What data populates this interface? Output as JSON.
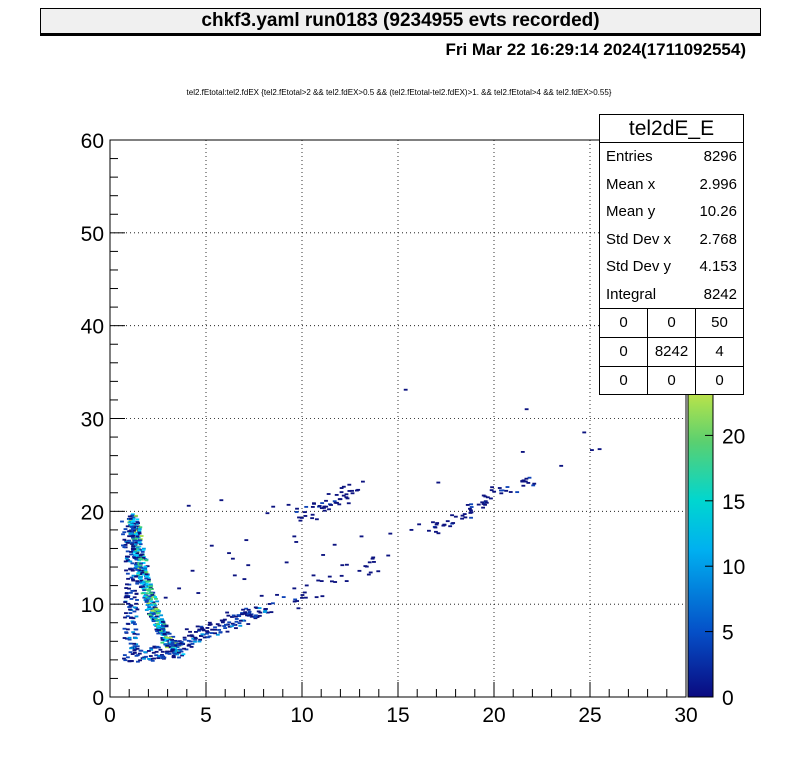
{
  "canvas": {
    "title": "chkf3.yaml  run0183 (9234955 evts recorded)",
    "date": "Fri Mar 22 16:29:14 2024(1711092554)",
    "cut": "tel2.fEtotal:tel2.fdEX {tel2.fEtotal>2 && tel2.fdEX>0.5 && (tel2.fEtotal-tel2.fdEX)>1. && tel2.fEtotal>4 && tel2.fdEX>0.55}"
  },
  "stats": {
    "title": "tel2dE_E",
    "rows": [
      {
        "label": "Entries",
        "value": "8296"
      },
      {
        "label": "Mean x",
        "value": "2.996"
      },
      {
        "label": "Mean y",
        "value": "10.26"
      },
      {
        "label": "Std Dev x",
        "value": "2.768"
      },
      {
        "label": "Std Dev y",
        "value": "4.153"
      },
      {
        "label": "Integral",
        "value": "8242"
      }
    ],
    "grid": [
      [
        "0",
        "0",
        "50"
      ],
      [
        "0",
        "8242",
        "4"
      ],
      [
        "0",
        "0",
        "0"
      ]
    ]
  },
  "chart_data": {
    "type": "heatmap",
    "title": "tel2dE_E",
    "xlim": [
      0,
      30
    ],
    "ylim": [
      0,
      60
    ],
    "xticks": [
      "0",
      "5",
      "10",
      "15",
      "20",
      "25",
      "30"
    ],
    "yticks": [
      "0",
      "10",
      "20",
      "30",
      "40",
      "50",
      "60"
    ],
    "z_range": [
      0,
      25
    ],
    "zticks": [
      "0",
      "5",
      "10",
      "15",
      "20"
    ],
    "grid": true,
    "palette": [
      "#0c1380",
      "#0f44b8",
      "#0098e0",
      "#00d0ff",
      "#3cd07c",
      "#a8e04a"
    ],
    "bands": [
      {
        "name": "ridge",
        "points": [
          [
            1.05,
            19.2
          ],
          [
            1.2,
            18.0
          ],
          [
            1.3,
            16.5
          ],
          [
            1.45,
            15.0
          ],
          [
            1.6,
            13.5
          ],
          [
            1.75,
            12.2
          ],
          [
            1.9,
            11.0
          ],
          [
            2.05,
            10.0
          ],
          [
            2.25,
            8.8
          ],
          [
            2.5,
            7.6
          ],
          [
            2.8,
            6.5
          ],
          [
            3.1,
            5.5
          ],
          [
            3.5,
            4.8
          ]
        ],
        "width": 0.28,
        "density": 12
      },
      {
        "name": "lower-branch",
        "points": [
          [
            3.0,
            5.0
          ],
          [
            4.0,
            6.2
          ],
          [
            5.0,
            7.0
          ],
          [
            6.0,
            7.8
          ],
          [
            7.0,
            8.6
          ],
          [
            8.0,
            9.2
          ]
        ],
        "width": 0.35,
        "density": 5
      },
      {
        "name": "upper-vertical",
        "points": [
          [
            0.8,
            19.0
          ],
          [
            0.9,
            16.0
          ],
          [
            1.0,
            13.0
          ],
          [
            1.0,
            10.0
          ],
          [
            1.0,
            7.0
          ],
          [
            1.0,
            5.0
          ]
        ],
        "width": 0.35,
        "density": 4
      },
      {
        "name": "floor",
        "points": [
          [
            0.6,
            4.5
          ],
          [
            1.5,
            4.5
          ],
          [
            2.5,
            4.6
          ],
          [
            3.5,
            4.8
          ]
        ],
        "width": 0.4,
        "density": 5
      },
      {
        "name": "sparse-branch",
        "points": [
          [
            8.0,
            9.0
          ],
          [
            10.0,
            11.0
          ],
          [
            12.0,
            13.0
          ],
          [
            14.0,
            14.8
          ]
        ],
        "width": 0.5,
        "density": 1
      },
      {
        "name": "mid-cluster",
        "points": [
          [
            9.8,
            19.5
          ],
          [
            10.8,
            20.3
          ],
          [
            11.8,
            21.2
          ],
          [
            12.8,
            22.3
          ]
        ],
        "width": 0.45,
        "density": 3
      },
      {
        "name": "high-branch",
        "points": [
          [
            16.5,
            17.8
          ],
          [
            17.5,
            18.8
          ],
          [
            18.5,
            19.8
          ],
          [
            19.5,
            21.0
          ],
          [
            20.5,
            22.2
          ],
          [
            22.0,
            23.5
          ]
        ],
        "width": 0.3,
        "density": 2
      }
    ],
    "scatter": [
      [
        15.3,
        33.0
      ],
      [
        21.6,
        30.9
      ],
      [
        24.6,
        28.4
      ],
      [
        21.4,
        26.3
      ],
      [
        23.4,
        24.8
      ],
      [
        25.0,
        26.5
      ],
      [
        25.4,
        26.6
      ],
      [
        17.0,
        23.0
      ],
      [
        4.0,
        20.5
      ],
      [
        5.7,
        21.1
      ],
      [
        9.2,
        20.6
      ],
      [
        8.1,
        19.7
      ],
      [
        4.2,
        13.5
      ],
      [
        6.3,
        14.8
      ],
      [
        7.1,
        14.1
      ],
      [
        3.5,
        11.6
      ],
      [
        13.2,
        14.0
      ],
      [
        11.6,
        16.3
      ],
      [
        9.6,
        16.6
      ],
      [
        7.0,
        16.8
      ],
      [
        13.0,
        17.2
      ],
      [
        14.5,
        17.5
      ],
      [
        15.6,
        17.9
      ],
      [
        3.9,
        7.2
      ],
      [
        6.9,
        12.6
      ],
      [
        8.6,
        10.9
      ],
      [
        9.5,
        11.6
      ],
      [
        7.8,
        10.8
      ],
      [
        4.5,
        11.1
      ],
      [
        6.0,
        9.0
      ],
      [
        10.5,
        13.0
      ],
      [
        11.0,
        15.2
      ],
      [
        12.0,
        14.1
      ],
      [
        2.8,
        10.6
      ],
      [
        5.1,
        7.9
      ],
      [
        6.4,
        13.0
      ],
      [
        9.1,
        14.4
      ],
      [
        10.1,
        10.6
      ],
      [
        16.0,
        18.5
      ],
      [
        18.7,
        20.0
      ],
      [
        19.8,
        22.5
      ],
      [
        8.4,
        20.4
      ],
      [
        9.5,
        17.2
      ],
      [
        5.2,
        16.2
      ],
      [
        6.1,
        15.4
      ]
    ]
  }
}
